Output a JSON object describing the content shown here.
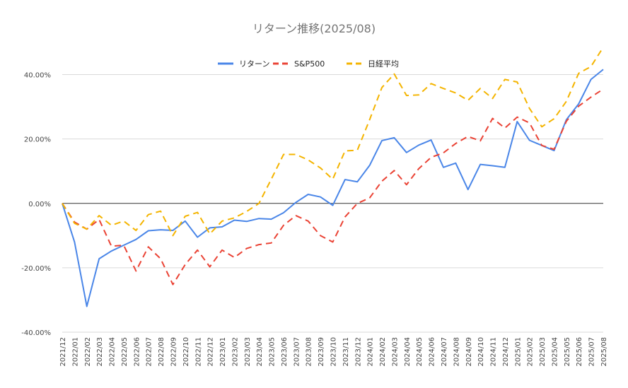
{
  "chart_data": {
    "type": "line",
    "title": "リターン推移(2025/08)",
    "xlabel": "",
    "ylabel": "",
    "ylim": [
      -0.4,
      0.5
    ],
    "yticks": [
      -0.4,
      -0.2,
      0.0,
      0.2,
      0.4
    ],
    "ytick_labels": [
      "-40.00%",
      "-20.00%",
      "0.00%",
      "20.00%",
      "40.00%"
    ],
    "grid": true,
    "legend_position": "top",
    "categories": [
      "2021/12",
      "2022/01",
      "2022/02",
      "2022/03",
      "2022/04",
      "2022/05",
      "2022/06",
      "2022/07",
      "2022/08",
      "2022/09",
      "2022/10",
      "2022/11",
      "2022/12",
      "2023/01",
      "2023/02",
      "2023/03",
      "2023/04",
      "2023/05",
      "2023/06",
      "2023/07",
      "2023/08",
      "2023/09",
      "2023/10",
      "2023/11",
      "2023/12",
      "2024/01",
      "2024/02",
      "2024/03",
      "2024/04",
      "2024/05",
      "2024/06",
      "2024/07",
      "2024/08",
      "2024/09",
      "2024/10",
      "2024/11",
      "2024/12",
      "2025/01",
      "2025/02",
      "2025/03",
      "2025/04",
      "2025/05",
      "2025/06",
      "2025/07",
      "2025/08"
    ],
    "series": [
      {
        "name": "リターン",
        "color": "#4a86e8",
        "dash": "solid",
        "values": [
          0.0,
          -0.12,
          -0.32,
          -0.172,
          -0.148,
          -0.13,
          -0.112,
          -0.085,
          -0.082,
          -0.084,
          -0.055,
          -0.105,
          -0.076,
          -0.073,
          -0.052,
          -0.056,
          -0.047,
          -0.049,
          -0.029,
          0.003,
          0.028,
          0.02,
          -0.006,
          0.074,
          0.067,
          0.118,
          0.195,
          0.204,
          0.158,
          0.181,
          0.197,
          0.112,
          0.125,
          0.043,
          0.121,
          0.117,
          0.112,
          0.254,
          0.196,
          0.18,
          0.164,
          0.26,
          0.309,
          0.385,
          0.416
        ]
      },
      {
        "name": "S&P500",
        "color": "#ea4335",
        "dash": "dashed",
        "values": [
          0.0,
          -0.058,
          -0.08,
          -0.05,
          -0.133,
          -0.13,
          -0.21,
          -0.135,
          -0.172,
          -0.252,
          -0.19,
          -0.145,
          -0.197,
          -0.145,
          -0.168,
          -0.14,
          -0.128,
          -0.123,
          -0.068,
          -0.038,
          -0.055,
          -0.1,
          -0.12,
          -0.042,
          0.0,
          0.017,
          0.069,
          0.102,
          0.058,
          0.108,
          0.143,
          0.157,
          0.186,
          0.208,
          0.194,
          0.264,
          0.234,
          0.268,
          0.25,
          0.18,
          0.168,
          0.255,
          0.302,
          0.33,
          0.355
        ]
      },
      {
        "name": "日経平均",
        "color": "#f4b400",
        "dash": "dashed",
        "values": [
          0.0,
          -0.062,
          -0.08,
          -0.038,
          -0.068,
          -0.055,
          -0.084,
          -0.035,
          -0.024,
          -0.1,
          -0.04,
          -0.028,
          -0.095,
          -0.055,
          -0.045,
          -0.025,
          0.0,
          0.075,
          0.152,
          0.152,
          0.135,
          0.11,
          0.075,
          0.163,
          0.165,
          0.26,
          0.36,
          0.402,
          0.335,
          0.337,
          0.372,
          0.357,
          0.343,
          0.32,
          0.357,
          0.326,
          0.385,
          0.377,
          0.295,
          0.238,
          0.263,
          0.317,
          0.404,
          0.425,
          0.485
        ]
      }
    ]
  }
}
